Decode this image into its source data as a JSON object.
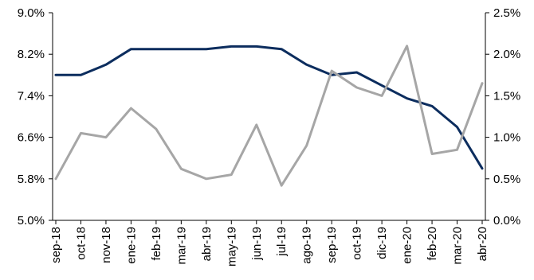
{
  "chart_data": {
    "type": "line",
    "title": "",
    "xlabel": "",
    "ylabel": "",
    "y2label": "",
    "ylim": [
      5.0,
      9.0
    ],
    "y2lim": [
      0.0,
      2.5
    ],
    "yticks": [
      "5.0%",
      "5.8%",
      "6.6%",
      "7.4%",
      "8.2%",
      "9.0%"
    ],
    "y2ticks": [
      "0.0%",
      "0.5%",
      "1.0%",
      "1.5%",
      "2.0%",
      "2.5%"
    ],
    "xticks": [
      "sep-18",
      "oct-18",
      "nov-18",
      "ene-19",
      "feb-19",
      "mar-19",
      "abr-19",
      "may-19",
      "jun-19",
      "jul-19",
      "ago-19",
      "sep-19",
      "oct-19",
      "dic-19",
      "ene-20",
      "feb-20",
      "mar-20",
      "abr-20"
    ],
    "grid": false,
    "legend": "none",
    "series": [
      {
        "axis": "left",
        "color": "#0c2d5e",
        "x": [
          "sep-18",
          "oct-18",
          "nov-18",
          "ene-19",
          "feb-19",
          "mar-19",
          "abr-19",
          "may-19",
          "jun-19",
          "jul-19",
          "ago-19",
          "sep-19",
          "oct-19",
          "dic-19",
          "ene-20",
          "feb-20",
          "mar-20",
          "abr-20"
        ],
        "values": [
          7.8,
          7.8,
          8.0,
          8.3,
          8.3,
          8.3,
          8.3,
          8.35,
          8.35,
          8.3,
          8.0,
          7.8,
          7.85,
          7.6,
          7.35,
          7.2,
          6.8,
          6.0
        ]
      },
      {
        "axis": "right",
        "color": "#a6a6a6",
        "x": [
          "sep-18",
          "oct-18",
          "nov-18",
          "ene-19",
          "feb-19",
          "mar-19",
          "abr-19",
          "may-19",
          "jun-19",
          "jul-19",
          "ago-19",
          "sep-19",
          "oct-19",
          "dic-19",
          "ene-20",
          "feb-20",
          "mar-20",
          "abr-20"
        ],
        "values": [
          0.5,
          1.05,
          1.0,
          1.35,
          1.1,
          0.62,
          0.5,
          0.55,
          1.15,
          0.42,
          0.9,
          1.8,
          1.6,
          1.5,
          2.1,
          0.8,
          0.85,
          1.65
        ]
      }
    ]
  }
}
